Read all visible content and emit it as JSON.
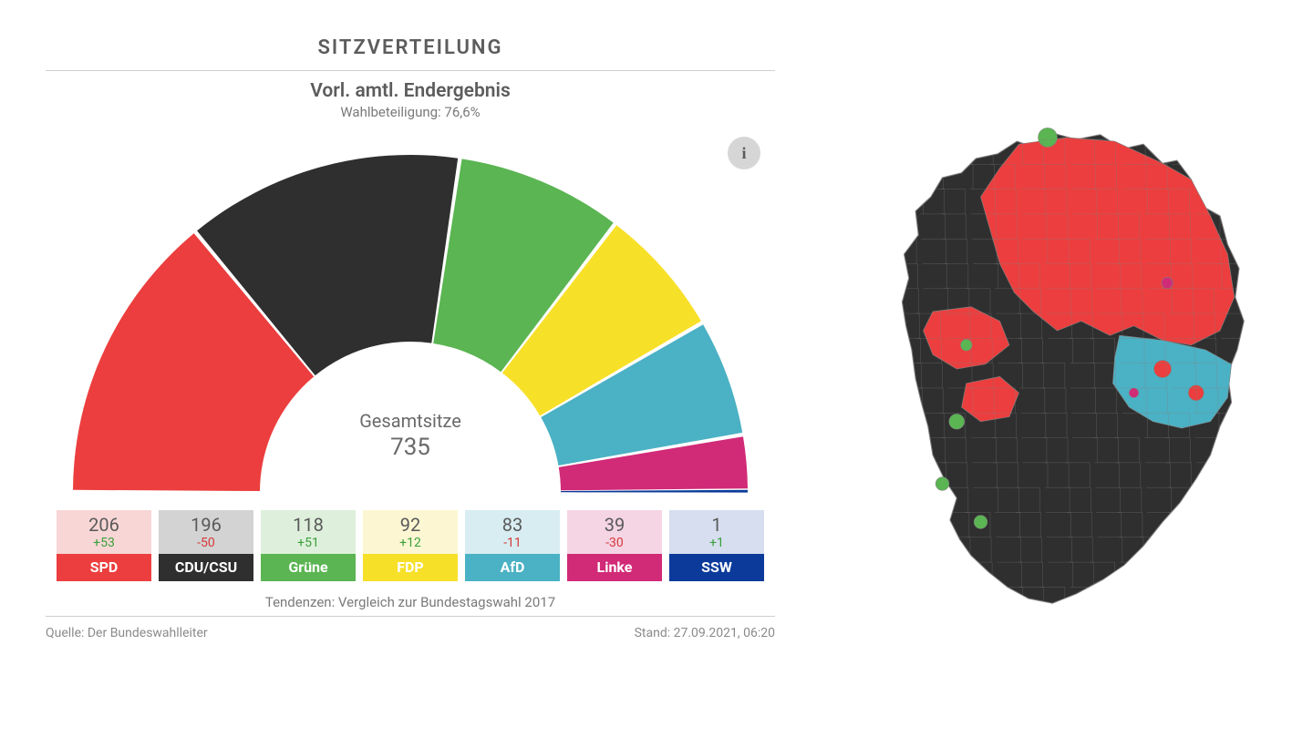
{
  "chart": {
    "title": "SITZVERTEILUNG",
    "subtitle": "Vorl. amtl. Endergebnis",
    "turnout_label": "Wahlbeteiligung: 76,6%",
    "total_label": "Gesamtsitze",
    "total_seats": "735",
    "trend_note": "Tendenzen: Vergleich zur Bundestagswahl 2017",
    "source_label": "Quelle: Der Bundeswahlleiter",
    "stand_label": "Stand: 27.09.2021, 06:20",
    "info_glyph": "i",
    "type": "semicircle-donut",
    "inner_radius": 165,
    "outer_radius": 370,
    "background_color": "#ffffff",
    "title_color": "#5c5c5c",
    "text_color": "#6a6a6a",
    "parties": [
      {
        "id": "spd",
        "name": "SPD",
        "seats": 206,
        "delta": "+53",
        "delta_sign": "pos",
        "color": "#ec3e3e",
        "tint": "#f8d6d6"
      },
      {
        "id": "cducsu",
        "name": "CDU/CSU",
        "seats": 196,
        "delta": "-50",
        "delta_sign": "neg",
        "color": "#2f2f2f",
        "tint": "#d3d3d3"
      },
      {
        "id": "gruene",
        "name": "Grüne",
        "seats": 118,
        "delta": "+51",
        "delta_sign": "pos",
        "color": "#5ab552",
        "tint": "#def0dc"
      },
      {
        "id": "fdp",
        "name": "FDP",
        "seats": 92,
        "delta": "+12",
        "delta_sign": "pos",
        "color": "#f7e028",
        "tint": "#fcf7d2"
      },
      {
        "id": "afd",
        "name": "AfD",
        "seats": 83,
        "delta": "-11",
        "delta_sign": "neg",
        "color": "#4bb1c4",
        "tint": "#d8edf1"
      },
      {
        "id": "linke",
        "name": "Linke",
        "seats": 39,
        "delta": "-30",
        "delta_sign": "neg",
        "color": "#d12a77",
        "tint": "#f5d5e4"
      },
      {
        "id": "ssw",
        "name": "SSW",
        "seats": 1,
        "delta": "+1",
        "delta_sign": "pos",
        "color": "#0b3a9a",
        "tint": "#d6deef"
      }
    ]
  },
  "map": {
    "colors": {
      "spd": "#ec3e3e",
      "cducsu": "#2f2f2f",
      "gruene": "#5ab552",
      "afd": "#4bb1c4",
      "linke": "#d12a77",
      "border": "#808080"
    }
  }
}
